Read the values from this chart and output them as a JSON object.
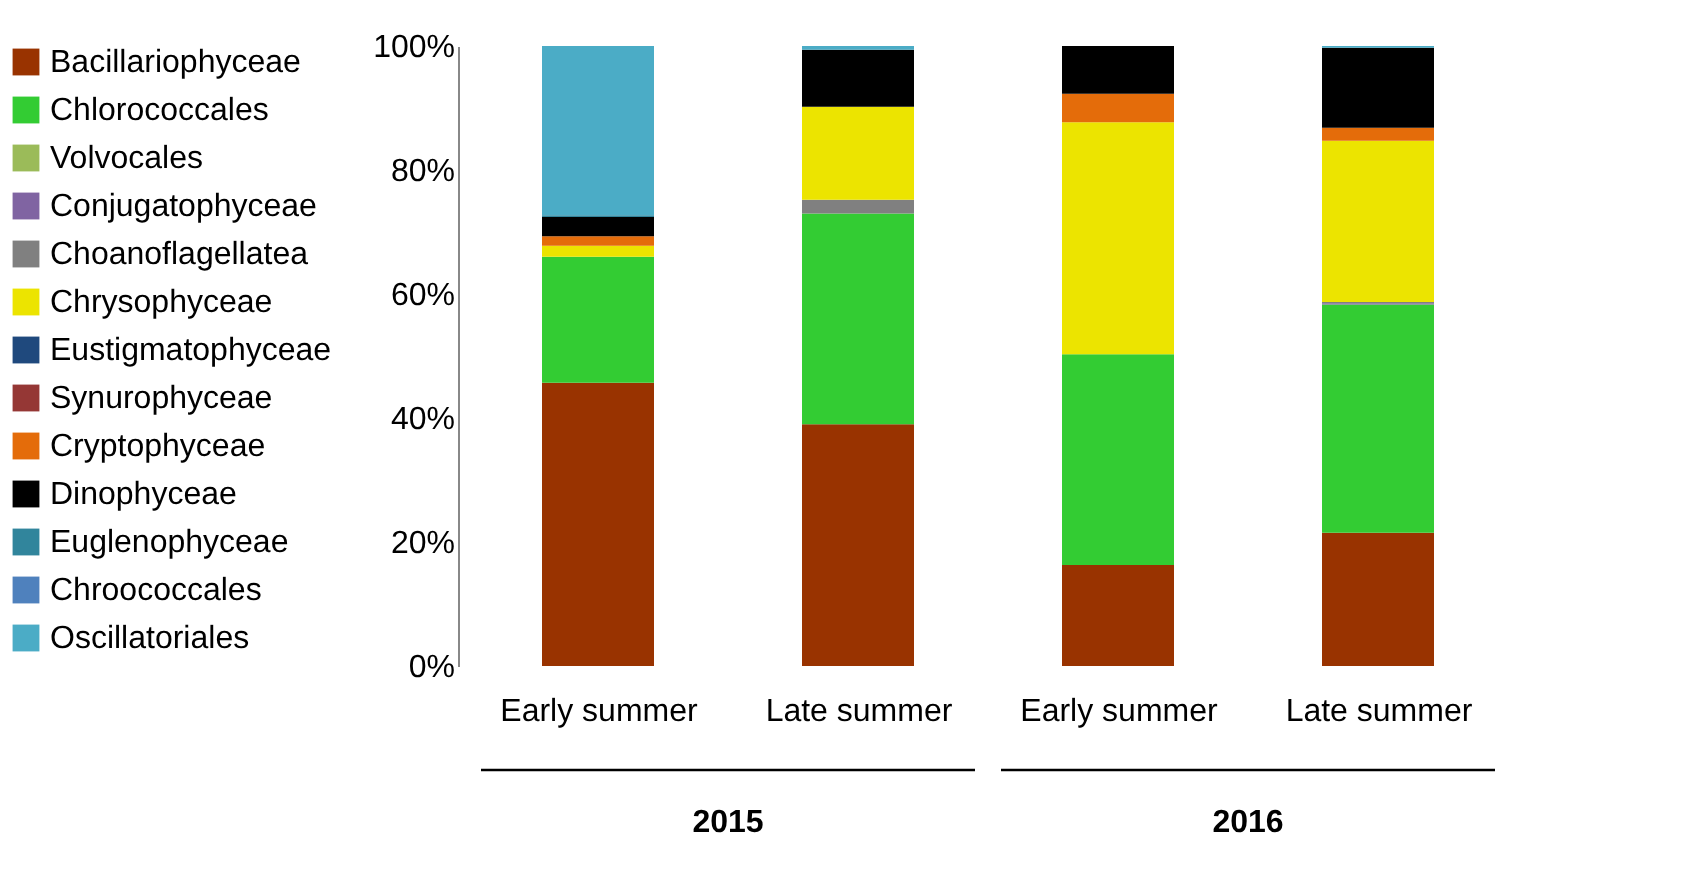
{
  "chart_data": {
    "type": "bar",
    "stacked": true,
    "categories": [
      "Early summer",
      "Late summer",
      "Early summer",
      "Late summer"
    ],
    "series": [
      {
        "name": "Bacillariophyceae",
        "color": "#993300",
        "values": [
          45.7,
          39.0,
          16.3,
          21.5
        ]
      },
      {
        "name": "Chlorococcales",
        "color": "#33cc33",
        "values": [
          20.3,
          34.0,
          34.0,
          36.8
        ]
      },
      {
        "name": "Volvocales",
        "color": "#9bbb59",
        "values": [
          null,
          null,
          null,
          null
        ]
      },
      {
        "name": "Conjugatophyceae",
        "color": "#8064a2",
        "values": [
          null,
          null,
          null,
          0.2
        ]
      },
      {
        "name": "Choanoflagellatea",
        "color": "#808080",
        "values": [
          null,
          2.2,
          null,
          0.2
        ]
      },
      {
        "name": "Chrysophyceae",
        "color": "#ece400",
        "values": [
          1.8,
          15.0,
          37.4,
          26.0
        ]
      },
      {
        "name": "Eustigmatophyceae",
        "color": "#1f497d",
        "values": [
          null,
          null,
          null,
          null
        ]
      },
      {
        "name": "Synurophyceae",
        "color": "#953735",
        "values": [
          null,
          null,
          null,
          null
        ]
      },
      {
        "name": "Cryptophyceae",
        "color": "#e46c0a",
        "values": [
          1.5,
          null,
          4.6,
          2.1
        ]
      },
      {
        "name": "Dinophyceae",
        "color": "#000000",
        "values": [
          3.1,
          9.2,
          7.7,
          12.9
        ]
      },
      {
        "name": "Euglenophyceae",
        "color": "#31859c",
        "values": [
          0.3,
          null,
          null,
          null
        ]
      },
      {
        "name": "Chroococcales",
        "color": "#4f81bd",
        "values": [
          null,
          null,
          null,
          null
        ]
      },
      {
        "name": "Oscillatoriales",
        "color": "#4bacc6",
        "values": [
          27.3,
          0.6,
          null,
          0.3
        ]
      }
    ],
    "ylim": [
      0,
      100
    ],
    "yticks": [
      {
        "value": 0,
        "label": "0%"
      },
      {
        "value": 20,
        "label": "20%"
      },
      {
        "value": 40,
        "label": "40%"
      },
      {
        "value": 60,
        "label": "60%"
      },
      {
        "value": 80,
        "label": "80%"
      },
      {
        "value": 100,
        "label": "100%"
      }
    ],
    "annotations": [
      "2015",
      "2016"
    ],
    "legend": "left",
    "grid": false
  }
}
